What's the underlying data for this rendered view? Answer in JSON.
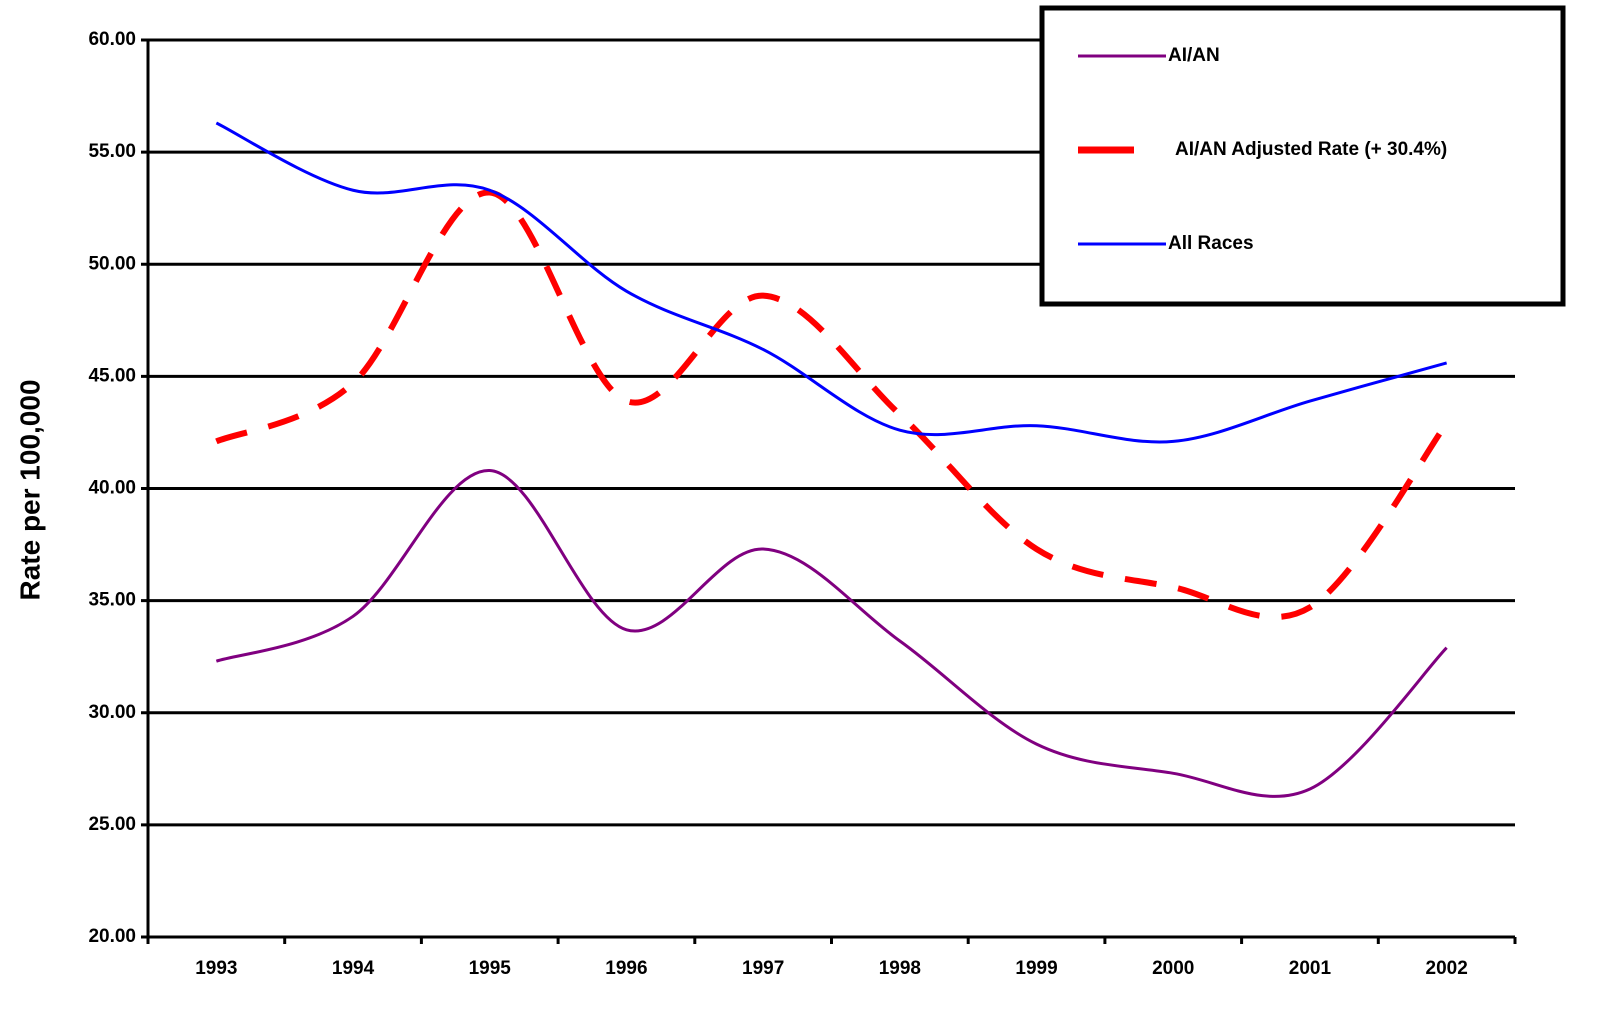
{
  "chart_data": {
    "type": "line",
    "y_label": "Rate per 100,000",
    "categories": [
      "1993",
      "1994",
      "1995",
      "1996",
      "1997",
      "1998",
      "1999",
      "2000",
      "2001",
      "2002"
    ],
    "series": [
      {
        "name": "AI/AN",
        "color": "#800080",
        "dashed": false,
        "values": [
          32.3,
          34.3,
          40.8,
          33.7,
          37.3,
          33.2,
          28.6,
          27.3,
          26.6,
          32.9
        ]
      },
      {
        "name": "AI/AN Adjusted Rate (+ 30.4%)",
        "color": "#ff0000",
        "dashed": true,
        "values": [
          42.1,
          44.7,
          53.2,
          43.9,
          48.6,
          43.3,
          37.3,
          35.6,
          34.7,
          42.9
        ]
      },
      {
        "name": "All Races",
        "color": "#0000ff",
        "dashed": false,
        "values": [
          56.3,
          53.3,
          53.3,
          48.8,
          46.2,
          42.6,
          42.8,
          42.1,
          43.9,
          45.6
        ]
      }
    ],
    "ylim": [
      20,
      60
    ],
    "yticks": [
      {
        "value": 20,
        "label": "20.00"
      },
      {
        "value": 25,
        "label": "25.00"
      },
      {
        "value": 30,
        "label": "30.00"
      },
      {
        "value": 35,
        "label": "35.00"
      },
      {
        "value": 40,
        "label": "40.00"
      },
      {
        "value": 45,
        "label": "45.00"
      },
      {
        "value": 50,
        "label": "50.00"
      },
      {
        "value": 55,
        "label": "55.00"
      },
      {
        "value": 60,
        "label": "60.00"
      }
    ],
    "grid": true,
    "legend": "upper right"
  }
}
